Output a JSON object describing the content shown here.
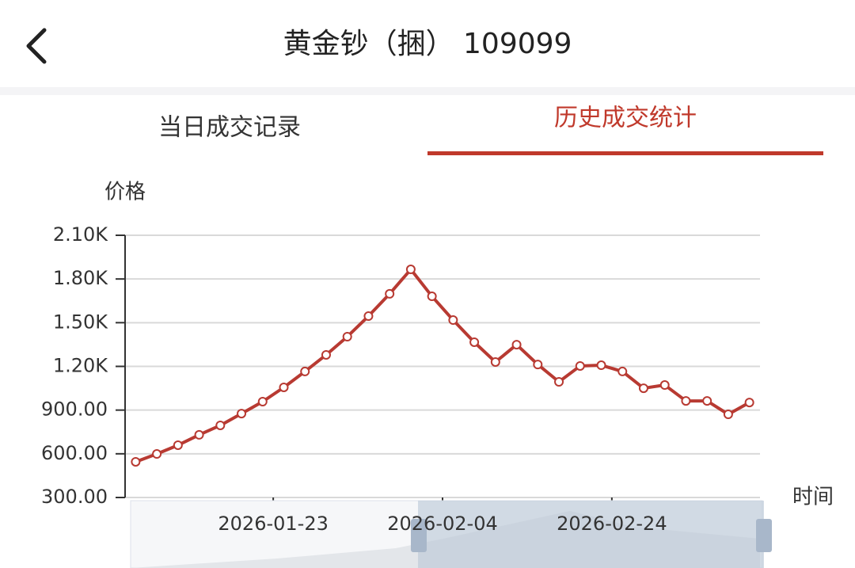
{
  "header": {
    "title": "黄金钞（捆） 109099"
  },
  "tabs": [
    "当日成交记录",
    "历史成交统计"
  ],
  "chart_data": {
    "type": "line",
    "y_label": "价格",
    "x_label": "时间",
    "categories": [
      null,
      null,
      null,
      null,
      null,
      null,
      null,
      "2026-01-23",
      null,
      null,
      null,
      null,
      null,
      null,
      null,
      "2026-02-04",
      null,
      null,
      null,
      null,
      null,
      null,
      null,
      "2026-02-24",
      null,
      null,
      null,
      null,
      null,
      null
    ],
    "series": [
      {
        "name": "价格",
        "color": "#b83a32",
        "values": [
          545,
          599,
          659,
          730,
          795,
          876,
          958,
          1056,
          1165,
          1279,
          1404,
          1545,
          1698,
          1866,
          1681,
          1518,
          1366,
          1230,
          1349,
          1213,
          1094,
          1203,
          1208,
          1165,
          1050,
          1072,
          963,
          963,
          871,
          952
        ]
      }
    ],
    "ylim": [
      300,
      2100
    ],
    "yticks": [
      {
        "value": 300,
        "label": "300.00"
      },
      {
        "value": 600,
        "label": "600.00"
      },
      {
        "value": 900,
        "label": "900.00"
      },
      {
        "value": 1200,
        "label": "1.20K"
      },
      {
        "value": 1500,
        "label": "1.50K"
      },
      {
        "value": 1800,
        "label": "1.80K"
      },
      {
        "value": 2100,
        "label": "2.10K"
      }
    ],
    "grid": true
  }
}
